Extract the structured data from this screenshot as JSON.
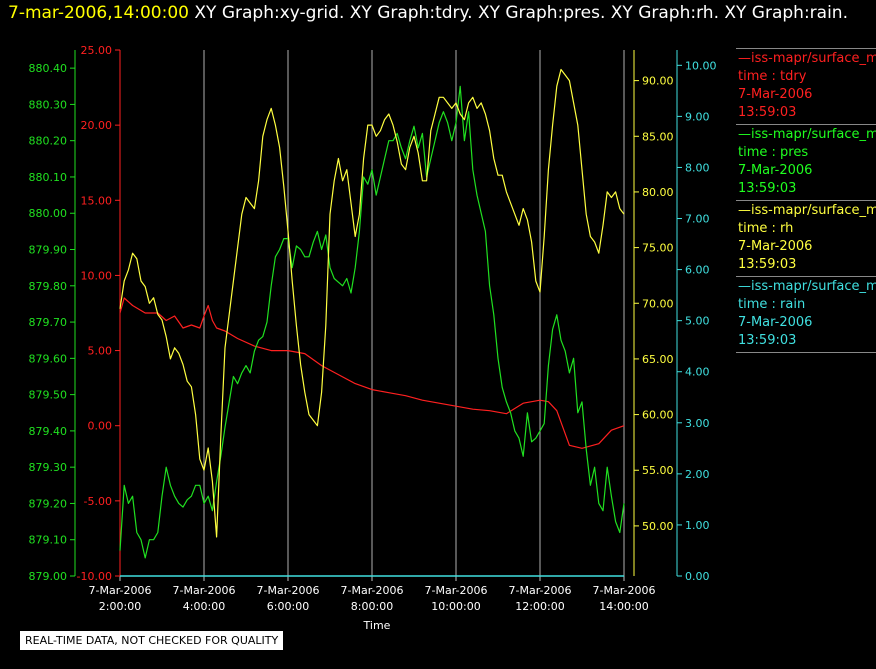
{
  "header": {
    "timestamp": "7-mar-2006,14:00:00",
    "titles": "XY Graph:xy-grid.  XY Graph:tdry.  XY Graph:pres.  XY Graph:rh.  XY Graph:rain."
  },
  "legend": [
    {
      "source": "—iss-mapr/surface_m",
      "name": "time : tdry",
      "date": "7-Mar-2006",
      "time": "13:59:03",
      "color": "#ff2020"
    },
    {
      "source": "—iss-mapr/surface_m",
      "name": "time : pres",
      "date": "7-Mar-2006",
      "time": "13:59:03",
      "color": "#20ff20"
    },
    {
      "source": "—iss-mapr/surface_m",
      "name": "time : rh",
      "date": "7-Mar-2006",
      "time": "13:59:03",
      "color": "#ffff40"
    },
    {
      "source": "—iss-mapr/surface_m",
      "name": "time : rain",
      "date": "7-Mar-2006",
      "time": "13:59:03",
      "color": "#40e0e0"
    }
  ],
  "notice": "REAL-TIME DATA, NOT CHECKED FOR QUALITY",
  "chart_data": {
    "type": "line",
    "xlabel": "Time",
    "x_ticks": [
      {
        "date": "7-Mar-2006",
        "time": "2:00:00",
        "hour": 2
      },
      {
        "date": "7-Mar-2006",
        "time": "4:00:00",
        "hour": 4
      },
      {
        "date": "7-Mar-2006",
        "time": "6:00:00",
        "hour": 6
      },
      {
        "date": "7-Mar-2006",
        "time": "8:00:00",
        "hour": 8
      },
      {
        "date": "7-Mar-2006",
        "time": "10:00:00",
        "hour": 10
      },
      {
        "date": "7-Mar-2006",
        "time": "12:00:00",
        "hour": 12
      },
      {
        "date": "7-Mar-2006",
        "time": "14:00:00",
        "hour": 14
      }
    ],
    "xlim": [
      2,
      14
    ],
    "axes": {
      "pres": {
        "color": "#20e020",
        "ylim": [
          879.0,
          880.45
        ],
        "ticks": [
          "879.00",
          "879.10",
          "879.20",
          "879.30",
          "879.40",
          "879.50",
          "879.60",
          "879.70",
          "879.80",
          "879.90",
          "880.00",
          "880.10",
          "880.20",
          "880.30",
          "880.40"
        ]
      },
      "tdry": {
        "color": "#ff2020",
        "ylim": [
          -10,
          25
        ],
        "ticks": [
          "-10.00",
          "-5.00",
          "0.00",
          "5.00",
          "10.00",
          "15.00",
          "20.00",
          "25.00"
        ]
      },
      "rh": {
        "color": "#ffff40",
        "ylim": [
          45.5,
          92.75
        ],
        "ticks": [
          "50.00",
          "55.00",
          "60.00",
          "65.00",
          "70.00",
          "75.00",
          "80.00",
          "85.00",
          "90.00"
        ]
      },
      "rain": {
        "color": "#40e0e0",
        "ylim": [
          0,
          10.3
        ],
        "ticks": [
          "0.00",
          "1.00",
          "2.00",
          "3.00",
          "4.00",
          "5.00",
          "6.00",
          "7.00",
          "8.00",
          "9.00",
          "10.00"
        ]
      }
    },
    "series": [
      {
        "key": "tdry",
        "color": "#ff2020",
        "x": [
          2.0,
          2.1,
          2.3,
          2.6,
          2.9,
          3.1,
          3.3,
          3.5,
          3.7,
          3.9,
          4.0,
          4.1,
          4.2,
          4.3,
          4.5,
          4.8,
          5.2,
          5.6,
          6.0,
          6.4,
          6.8,
          7.2,
          7.6,
          8.0,
          8.4,
          8.8,
          9.2,
          9.6,
          10.0,
          10.4,
          10.8,
          11.2,
          11.6,
          12.0,
          12.2,
          12.4,
          12.7,
          13.0,
          13.4,
          13.7,
          14.0
        ],
        "y": [
          7.5,
          8.5,
          8.0,
          7.5,
          7.5,
          7.0,
          7.3,
          6.5,
          6.7,
          6.5,
          7.3,
          8.0,
          7.0,
          6.5,
          6.3,
          5.8,
          5.3,
          5.0,
          5.0,
          4.8,
          4.0,
          3.4,
          2.8,
          2.4,
          2.2,
          2.0,
          1.7,
          1.5,
          1.3,
          1.1,
          1.0,
          0.8,
          1.5,
          1.7,
          1.6,
          1.0,
          -1.3,
          -1.5,
          -1.2,
          -0.3,
          0.0
        ]
      },
      {
        "key": "pres",
        "color": "#20e020",
        "x": [
          2.0,
          2.1,
          2.2,
          2.3,
          2.4,
          2.5,
          2.6,
          2.7,
          2.8,
          2.9,
          3.0,
          3.1,
          3.2,
          3.3,
          3.4,
          3.5,
          3.6,
          3.7,
          3.8,
          3.9,
          4.0,
          4.1,
          4.2,
          4.3,
          4.4,
          4.5,
          4.6,
          4.7,
          4.8,
          4.9,
          5.0,
          5.1,
          5.2,
          5.3,
          5.4,
          5.5,
          5.6,
          5.7,
          5.8,
          5.9,
          6.0,
          6.1,
          6.2,
          6.3,
          6.4,
          6.5,
          6.6,
          6.7,
          6.8,
          6.9,
          7.0,
          7.1,
          7.2,
          7.3,
          7.4,
          7.5,
          7.6,
          7.7,
          7.8,
          7.9,
          8.0,
          8.1,
          8.2,
          8.3,
          8.4,
          8.5,
          8.6,
          8.7,
          8.8,
          8.9,
          9.0,
          9.1,
          9.2,
          9.3,
          9.4,
          9.5,
          9.6,
          9.7,
          9.8,
          9.9,
          10.0,
          10.1,
          10.2,
          10.3,
          10.4,
          10.5,
          10.6,
          10.7,
          10.8,
          10.9,
          11.0,
          11.1,
          11.2,
          11.3,
          11.4,
          11.5,
          11.6,
          11.7,
          11.8,
          11.9,
          12.0,
          12.1,
          12.2,
          12.3,
          12.4,
          12.5,
          12.6,
          12.7,
          12.8,
          12.9,
          13.0,
          13.1,
          13.2,
          13.3,
          13.4,
          13.5,
          13.6,
          13.7,
          13.8,
          13.9,
          14.0
        ],
        "y": [
          879.07,
          879.25,
          879.2,
          879.22,
          879.12,
          879.1,
          879.05,
          879.1,
          879.1,
          879.12,
          879.22,
          879.3,
          879.25,
          879.22,
          879.2,
          879.19,
          879.21,
          879.22,
          879.25,
          879.25,
          879.2,
          879.22,
          879.18,
          879.26,
          879.33,
          879.41,
          879.48,
          879.55,
          879.53,
          879.56,
          879.58,
          879.56,
          879.62,
          879.65,
          879.66,
          879.7,
          879.8,
          879.88,
          879.9,
          879.93,
          879.93,
          879.85,
          879.91,
          879.9,
          879.88,
          879.88,
          879.92,
          879.95,
          879.9,
          879.94,
          879.85,
          879.82,
          879.81,
          879.8,
          879.82,
          879.78,
          879.85,
          879.95,
          880.1,
          880.08,
          880.12,
          880.05,
          880.1,
          880.15,
          880.2,
          880.2,
          880.22,
          880.18,
          880.15,
          880.2,
          880.24,
          880.18,
          880.22,
          880.1,
          880.15,
          880.2,
          880.25,
          880.28,
          880.25,
          880.2,
          880.25,
          880.35,
          880.2,
          880.28,
          880.12,
          880.05,
          880.0,
          879.95,
          879.8,
          879.72,
          879.6,
          879.52,
          879.48,
          879.45,
          879.4,
          879.38,
          879.33,
          879.45,
          879.37,
          879.38,
          879.4,
          879.42,
          879.58,
          879.68,
          879.72,
          879.65,
          879.62,
          879.56,
          879.6,
          879.45,
          879.48,
          879.35,
          879.25,
          879.3,
          879.2,
          879.18,
          879.3,
          879.22,
          879.15,
          879.12,
          879.2
        ]
      },
      {
        "key": "rh",
        "color": "#ffff40",
        "x": [
          2.0,
          2.1,
          2.2,
          2.3,
          2.4,
          2.5,
          2.6,
          2.7,
          2.8,
          2.9,
          3.0,
          3.1,
          3.2,
          3.3,
          3.4,
          3.5,
          3.6,
          3.7,
          3.8,
          3.9,
          4.0,
          4.1,
          4.2,
          4.3,
          4.4,
          4.5,
          4.6,
          4.7,
          4.8,
          4.9,
          5.0,
          5.1,
          5.2,
          5.3,
          5.4,
          5.5,
          5.6,
          5.7,
          5.8,
          5.9,
          6.0,
          6.1,
          6.2,
          6.3,
          6.4,
          6.5,
          6.6,
          6.7,
          6.8,
          6.9,
          7.0,
          7.1,
          7.2,
          7.3,
          7.4,
          7.5,
          7.6,
          7.7,
          7.8,
          7.9,
          8.0,
          8.1,
          8.2,
          8.3,
          8.4,
          8.5,
          8.6,
          8.7,
          8.8,
          8.9,
          9.0,
          9.1,
          9.2,
          9.3,
          9.4,
          9.5,
          9.6,
          9.7,
          9.8,
          9.9,
          10.0,
          10.1,
          10.2,
          10.3,
          10.4,
          10.5,
          10.6,
          10.7,
          10.8,
          10.9,
          11.0,
          11.1,
          11.2,
          11.3,
          11.4,
          11.5,
          11.6,
          11.7,
          11.8,
          11.9,
          12.0,
          12.1,
          12.2,
          12.3,
          12.4,
          12.5,
          12.6,
          12.7,
          12.8,
          12.9,
          13.0,
          13.1,
          13.2,
          13.3,
          13.4,
          13.5,
          13.6,
          13.7,
          13.8,
          13.9,
          14.0
        ],
        "y": [
          69.5,
          72.0,
          73.0,
          74.5,
          74.0,
          72.0,
          71.5,
          70.0,
          70.5,
          69.0,
          68.5,
          67.0,
          65.0,
          66.0,
          65.5,
          64.5,
          63.0,
          62.5,
          60.0,
          56.0,
          55.0,
          57.0,
          54.0,
          49.0,
          58.0,
          66.0,
          69.0,
          72.0,
          75.0,
          78.0,
          79.5,
          79.0,
          78.5,
          81.0,
          85.0,
          86.5,
          87.5,
          86.0,
          84.0,
          80.5,
          76.5,
          72.0,
          68.0,
          64.5,
          62.0,
          60.0,
          59.5,
          59.0,
          62.0,
          68.0,
          78.0,
          81.0,
          83.0,
          81.0,
          82.0,
          79.0,
          76.0,
          78.0,
          83.0,
          86.0,
          86.0,
          85.0,
          85.5,
          86.5,
          87.0,
          86.0,
          84.5,
          82.5,
          82.0,
          84.0,
          85.0,
          83.5,
          81.0,
          81.0,
          85.5,
          87.0,
          88.5,
          88.5,
          88.0,
          87.5,
          88.0,
          87.0,
          86.5,
          88.0,
          88.5,
          87.5,
          88.0,
          87.0,
          85.5,
          83.0,
          81.5,
          81.5,
          80.0,
          79.0,
          78.0,
          77.0,
          78.5,
          77.5,
          75.5,
          72.0,
          71.0,
          76.0,
          82.0,
          86.0,
          89.5,
          91.0,
          90.5,
          90.0,
          88.0,
          86.0,
          82.0,
          78.0,
          76.0,
          75.5,
          74.5,
          77.0,
          80.0,
          79.5,
          80.0,
          78.5,
          78.0
        ]
      },
      {
        "key": "rain",
        "color": "#40e0e0",
        "x": [
          2.0,
          14.0
        ],
        "y": [
          0.0,
          0.0
        ]
      }
    ]
  }
}
